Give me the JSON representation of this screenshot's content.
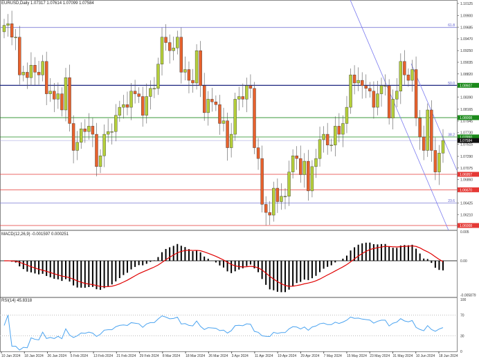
{
  "header": {
    "symbol_line": "EURUSD,Daily  1.07317 1.07614 1.07099 1.07584"
  },
  "macd_label": "MACD(12,26,9) -0.001597 0.000251",
  "rsi_label": "RSI(14) 45.8318",
  "chart_data": {
    "type": "candlestick",
    "price_ticks": [
      "1.10125",
      "1.09900",
      "1.09685",
      "1.09470",
      "1.09250",
      "1.09035",
      "1.08820",
      "1.08390",
      "1.08165",
      "1.07945",
      "1.07730",
      "1.07515",
      "1.07290",
      "1.07075",
      "1.06860",
      "1.06425",
      "1.06210"
    ],
    "ylim": [
      1.06008,
      1.10125
    ],
    "levels": [
      {
        "price": 1.0968,
        "label": "61.8",
        "kind": "fib",
        "color": "#7b7bd6"
      },
      {
        "price": 1.08607,
        "label": "50.0",
        "kind": "fib",
        "color": "#1a237e",
        "tag": "1.08607",
        "tagColor": "#1b8a1b"
      },
      {
        "price": 1.08008,
        "label": "",
        "kind": "support",
        "color": "#1b8a1b",
        "tag": "1.08008",
        "tagColor": "#1b8a1b"
      },
      {
        "price": 1.0765,
        "label": "38.2",
        "kind": "fib",
        "color": "#1b8a1b",
        "tag": "1.07650",
        "tagColor": "#1b8a1b"
      },
      {
        "price": 1.06957,
        "label": "",
        "kind": "resistance",
        "color": "#e53935",
        "tag": "1.06957",
        "tagColor": "#e53935"
      },
      {
        "price": 1.0667,
        "label": "",
        "kind": "resistance",
        "color": "#e53935",
        "tag": "1.06670",
        "tagColor": "#e53935"
      },
      {
        "price": 1.06425,
        "label": "23.6",
        "kind": "fib",
        "color": "#7b7bd6"
      },
      {
        "price": 1.06008,
        "label": "",
        "kind": "resistance",
        "color": "#e53935",
        "tag": "1.06008",
        "tagColor": "#e53935"
      }
    ],
    "current_price": "1.07584",
    "x_labels": [
      "10 Jan 2024",
      "18 Jan 2024",
      "26 Jan 2024",
      "5 Feb 2024",
      "13 Feb 2024",
      "21 Feb 2024",
      "29 Feb 2024",
      "8 Mar 2024",
      "18 Mar 2024",
      "26 Mar 2024",
      "3 Apr 2024",
      "11 Apr 2024",
      "19 Apr 2024",
      "29 Apr 2024",
      "7 May 2024",
      "15 May 2024",
      "23 May 2024",
      "31 May 2024",
      "10 Jun 2024",
      "18 Jun 2024"
    ],
    "closes": [
      1.0972,
      1.0975,
      1.095,
      1.095,
      1.088,
      1.0885,
      1.0875,
      1.0898,
      1.0885,
      1.088,
      1.0905,
      1.0845,
      1.085,
      1.0835,
      1.0845,
      1.0815,
      1.0875,
      1.079,
      1.074,
      1.0755,
      1.078,
      1.0775,
      1.0785,
      1.077,
      1.071,
      1.073,
      1.077,
      1.0775,
      1.0775,
      1.0805,
      1.082,
      1.0825,
      1.082,
      1.085,
      1.0845,
      1.084,
      1.0805,
      1.084,
      1.0855,
      1.0855,
      1.09,
      1.095,
      1.094,
      1.0925,
      1.093,
      1.095,
      1.0885,
      1.089,
      1.087,
      1.0865,
      1.0925,
      1.086,
      1.081,
      1.0835,
      1.083,
      1.0825,
      1.079,
      1.0795,
      1.0745,
      1.077,
      1.0835,
      1.084,
      1.0835,
      1.086,
      1.0855,
      1.0745,
      1.0725,
      1.064,
      1.0625,
      1.062,
      1.067,
      1.0645,
      1.0655,
      1.0655,
      1.07,
      1.073,
      1.0725,
      1.0695,
      1.072,
      1.0665,
      1.071,
      1.0725,
      1.076,
      1.077,
      1.075,
      1.075,
      1.0785,
      1.077,
      1.079,
      1.082,
      1.088,
      1.0865,
      1.087,
      1.086,
      1.0855,
      1.085,
      1.082,
      1.0845,
      1.086,
      1.086,
      1.08,
      1.0835,
      1.085,
      1.0905,
      1.088,
      1.087,
      1.089,
      1.08,
      1.0765,
      1.074,
      1.0815,
      1.074,
      1.07,
      1.0735,
      1.07584
    ],
    "first_open": 1.096,
    "bull_color": "#b5cf3a",
    "bear_color": "#e8612c",
    "macd": {
      "ticks": [
        "0.005",
        "0.00",
        "-0.005879"
      ],
      "signal_color": "#e00000",
      "hist_color": "#000000"
    },
    "rsi": {
      "ticks": [
        "100",
        "70",
        "30",
        "0"
      ],
      "line_color": "#4aa3f0",
      "levels": [
        70,
        30
      ]
    }
  }
}
